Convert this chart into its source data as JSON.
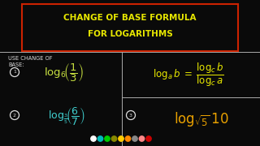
{
  "bg_color": "#0a0a0a",
  "title_line1": "CHANGE OF BASE FORMULA",
  "title_line2": "FOR LOGARITHMS",
  "title_color": "#e8e800",
  "title_box_edgecolor": "#cc2200",
  "label_color": "#dddddd",
  "formula_color": "#e8e800",
  "item1_color": "#c8e040",
  "item2_color": "#40d0d0",
  "item3_color": "#e8a000",
  "circle_color": "#dddddd",
  "divider_color": "#aaaaaa",
  "toolbar_colors": [
    "#ffffff",
    "#00bbbb",
    "#00cc00",
    "#888800",
    "#ffcc00",
    "#ff8800",
    "#888888",
    "#ff8888",
    "#cc0000"
  ]
}
